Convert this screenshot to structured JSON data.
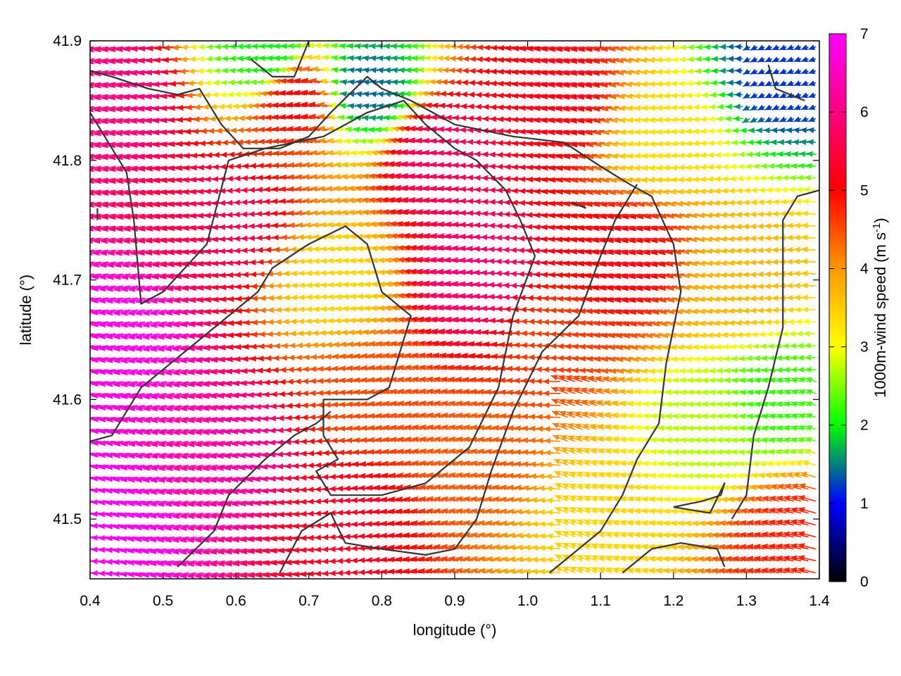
{
  "chart_data": {
    "type": "vector-field",
    "xlabel": "longitude (°)",
    "ylabel": "latitude (°)",
    "xlim": [
      0.4,
      1.4
    ],
    "ylim": [
      41.45,
      41.9
    ],
    "xticks": [
      "0.4",
      "0.5",
      "0.6",
      "0.7",
      "0.8",
      "0.9",
      "1.0",
      "1.1",
      "1.2",
      "1.3",
      "1.4"
    ],
    "yticks": [
      "41.5",
      "41.6",
      "41.7",
      "41.8",
      "41.9"
    ],
    "colorbar": {
      "label_main": "1000m-wind speed (m s",
      "label_sup": "-1",
      "label_end": ")",
      "range": [
        0,
        7
      ],
      "ticks": [
        "0",
        "1",
        "2",
        "3",
        "4",
        "5",
        "6",
        "7"
      ],
      "colors": [
        "#000000",
        "#0000ff",
        "#00ff00",
        "#ffff00",
        "#ff9900",
        "#ff0000",
        "#ff00ff"
      ]
    },
    "vector_field": {
      "description_key": "wind vectors pointing mostly westward; speed in m s-1",
      "grid_dx": 0.01,
      "grid_dy": 0.01,
      "speed_anchors": [
        {
          "lon": 0.45,
          "lat": 41.5,
          "speed": 6.9
        },
        {
          "lon": 0.45,
          "lat": 41.65,
          "speed": 6.8
        },
        {
          "lon": 0.45,
          "lat": 41.85,
          "speed": 6.0
        },
        {
          "lon": 0.6,
          "lat": 41.55,
          "speed": 6.3
        },
        {
          "lon": 0.6,
          "lat": 41.75,
          "speed": 5.6
        },
        {
          "lon": 0.7,
          "lat": 41.85,
          "speed": 5.0
        },
        {
          "lon": 0.75,
          "lat": 41.7,
          "speed": 3.4
        },
        {
          "lon": 0.75,
          "lat": 41.5,
          "speed": 5.3
        },
        {
          "lon": 0.8,
          "lat": 41.6,
          "speed": 4.5
        },
        {
          "lon": 0.9,
          "lat": 41.8,
          "speed": 5.7
        },
        {
          "lon": 0.95,
          "lat": 41.7,
          "speed": 5.9
        },
        {
          "lon": 0.95,
          "lat": 41.55,
          "speed": 4.4
        },
        {
          "lon": 1.05,
          "lat": 41.65,
          "speed": 4.6
        },
        {
          "lon": 1.05,
          "lat": 41.85,
          "speed": 5.2
        },
        {
          "lon": 1.1,
          "lat": 41.5,
          "speed": 3.4
        },
        {
          "lon": 1.15,
          "lat": 41.72,
          "speed": 5.1
        },
        {
          "lon": 1.2,
          "lat": 41.82,
          "speed": 3.3
        },
        {
          "lon": 1.25,
          "lat": 41.58,
          "speed": 2.7
        },
        {
          "lon": 1.3,
          "lat": 41.7,
          "speed": 3.7
        },
        {
          "lon": 1.35,
          "lat": 41.6,
          "speed": 2.2
        },
        {
          "lon": 1.35,
          "lat": 41.87,
          "speed": 1.2
        },
        {
          "lon": 0.65,
          "lat": 41.89,
          "speed": 2.0
        },
        {
          "lon": 0.78,
          "lat": 41.86,
          "speed": 1.4
        },
        {
          "lon": 1.38,
          "lat": 41.48,
          "speed": 4.8
        }
      ]
    },
    "contours": [
      [
        [
          0.4,
          41.565
        ],
        [
          0.43,
          41.57
        ],
        [
          0.47,
          41.61
        ],
        [
          0.53,
          41.64
        ],
        [
          0.59,
          41.67
        ],
        [
          0.63,
          41.69
        ],
        [
          0.65,
          41.71
        ],
        [
          0.7,
          41.73
        ],
        [
          0.75,
          41.745
        ],
        [
          0.78,
          41.73
        ],
        [
          0.8,
          41.69
        ],
        [
          0.84,
          41.67
        ],
        [
          0.81,
          41.61
        ],
        [
          0.78,
          41.6
        ],
        [
          0.72,
          41.6
        ],
        [
          0.72,
          41.57
        ],
        [
          0.74,
          41.55
        ],
        [
          0.71,
          41.54
        ],
        [
          0.73,
          41.52
        ],
        [
          0.8,
          41.52
        ],
        [
          0.86,
          41.53
        ],
        [
          0.92,
          41.56
        ],
        [
          0.96,
          41.61
        ],
        [
          0.98,
          41.67
        ],
        [
          1.01,
          41.72
        ],
        [
          0.99,
          41.75
        ],
        [
          0.97,
          41.775
        ],
        [
          0.93,
          41.8
        ],
        [
          0.9,
          41.81
        ],
        [
          0.86,
          41.83
        ],
        [
          0.83,
          41.85
        ],
        [
          0.78,
          41.84
        ],
        [
          0.72,
          41.82
        ],
        [
          0.64,
          41.81
        ],
        [
          0.59,
          41.8
        ],
        [
          0.56,
          41.73
        ],
        [
          0.5,
          41.69
        ],
        [
          0.47,
          41.68
        ],
        [
          0.46,
          41.75
        ],
        [
          0.45,
          41.79
        ],
        [
          0.43,
          41.81
        ],
        [
          0.4,
          41.84
        ]
      ],
      [
        [
          0.4,
          41.875
        ],
        [
          0.43,
          41.87
        ],
        [
          0.48,
          41.86
        ],
        [
          0.52,
          41.855
        ],
        [
          0.55,
          41.86
        ],
        [
          0.58,
          41.83
        ],
        [
          0.61,
          41.81
        ],
        [
          0.66,
          41.81
        ],
        [
          0.7,
          41.82
        ],
        [
          0.73,
          41.84
        ],
        [
          0.78,
          41.87
        ],
        [
          0.8,
          41.86
        ],
        [
          0.84,
          41.85
        ],
        [
          0.9,
          41.83
        ],
        [
          0.98,
          41.82
        ],
        [
          1.05,
          41.815
        ],
        [
          1.1,
          41.795
        ],
        [
          1.14,
          41.78
        ],
        [
          1.17,
          41.77
        ],
        [
          1.2,
          41.73
        ],
        [
          1.21,
          41.69
        ],
        [
          1.19,
          41.63
        ],
        [
          1.18,
          41.58
        ],
        [
          1.15,
          41.55
        ],
        [
          1.13,
          41.52
        ],
        [
          1.1,
          41.49
        ],
        [
          1.06,
          41.47
        ],
        [
          1.03,
          41.455
        ]
      ],
      [
        [
          1.28,
          41.5
        ],
        [
          1.3,
          41.52
        ],
        [
          1.31,
          41.57
        ],
        [
          1.33,
          41.61
        ],
        [
          1.35,
          41.66
        ],
        [
          1.35,
          41.71
        ],
        [
          1.35,
          41.75
        ],
        [
          1.37,
          41.77
        ],
        [
          1.4,
          41.775
        ]
      ],
      [
        [
          0.52,
          41.46
        ],
        [
          0.57,
          41.49
        ],
        [
          0.59,
          41.52
        ],
        [
          0.64,
          41.55
        ],
        [
          0.68,
          41.57
        ],
        [
          0.71,
          41.58
        ],
        [
          0.73,
          41.59
        ]
      ],
      [
        [
          0.66,
          41.455
        ],
        [
          0.69,
          41.49
        ],
        [
          0.73,
          41.505
        ],
        [
          0.75,
          41.48
        ],
        [
          0.8,
          41.475
        ],
        [
          0.86,
          41.47
        ],
        [
          0.9,
          41.475
        ],
        [
          0.93,
          41.5
        ],
        [
          0.95,
          41.54
        ],
        [
          0.98,
          41.59
        ],
        [
          1.02,
          41.64
        ],
        [
          1.07,
          41.67
        ],
        [
          1.1,
          41.72
        ],
        [
          1.12,
          41.75
        ],
        [
          1.15,
          41.78
        ]
      ],
      [
        [
          1.13,
          41.455
        ],
        [
          1.17,
          41.475
        ],
        [
          1.21,
          41.48
        ],
        [
          1.26,
          41.475
        ],
        [
          1.27,
          41.46
        ]
      ],
      [
        [
          1.2,
          41.51
        ],
        [
          1.25,
          41.505
        ],
        [
          1.27,
          41.53
        ],
        [
          1.265,
          41.52
        ],
        [
          1.24,
          41.515
        ],
        [
          1.2,
          41.51
        ]
      ],
      [
        [
          0.62,
          41.885
        ],
        [
          0.63,
          41.88
        ],
        [
          0.65,
          41.87
        ],
        [
          0.68,
          41.87
        ],
        [
          0.69,
          41.885
        ],
        [
          0.7,
          41.9
        ]
      ],
      [
        [
          1.33,
          41.88
        ],
        [
          1.34,
          41.86
        ],
        [
          1.36,
          41.855
        ],
        [
          1.38,
          41.85
        ]
      ],
      [
        [
          0.41,
          41.76
        ],
        [
          0.41,
          41.75
        ]
      ],
      [
        [
          1.06,
          41.765
        ],
        [
          1.08,
          41.76
        ]
      ]
    ]
  }
}
